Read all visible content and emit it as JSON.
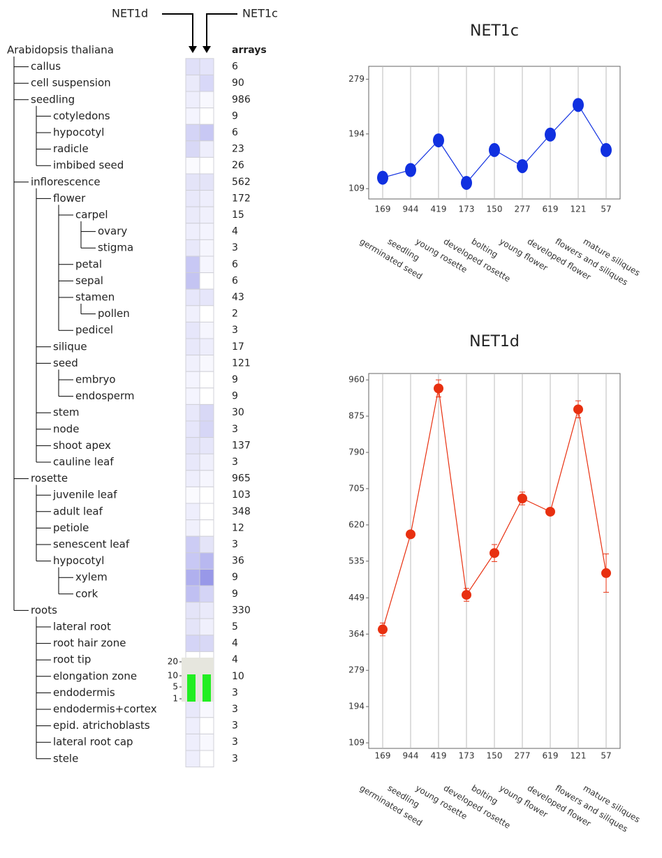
{
  "heatmap": {
    "columns": [
      "NET1d",
      "NET1c"
    ],
    "header": "arrays"
  },
  "tree": {
    "label": "Arabidopsis thaliana",
    "children": [
      {
        "label": "callus",
        "arrays": 6,
        "colors": [
          "#e0e0f8",
          "#e4e4fa"
        ]
      },
      {
        "label": "cell suspension",
        "arrays": 90,
        "colors": [
          "#eaeafa",
          "#d8d8f8"
        ]
      },
      {
        "label": "seedling",
        "arrays": 986,
        "colors": [
          "#eeeefc",
          "#f8f8fe"
        ],
        "children": [
          {
            "label": "cotyledons",
            "arrays": 9,
            "colors": [
              "#f4f4fe",
              "#ffffff"
            ]
          },
          {
            "label": "hypocotyl",
            "arrays": 6,
            "colors": [
              "#d4d4f6",
              "#c8c8f4"
            ]
          },
          {
            "label": "radicle",
            "arrays": 23,
            "colors": [
              "#d8d8f6",
              "#eeeefc"
            ]
          },
          {
            "label": "imbibed seed",
            "arrays": 26,
            "colors": [
              "#fafafe",
              "#ffffff"
            ]
          }
        ]
      },
      {
        "label": "inflorescence",
        "arrays": 562,
        "colors": [
          "#e4e4f8",
          "#e4e4f8"
        ],
        "children": [
          {
            "label": "flower",
            "arrays": 172,
            "colors": [
              "#e8e8fa",
              "#eeeefc"
            ],
            "children": [
              {
                "label": "carpel",
                "arrays": 15,
                "colors": [
                  "#eaeafa",
                  "#f0f0fc"
                ],
                "children": [
                  {
                    "label": "ovary",
                    "arrays": 4,
                    "colors": [
                      "#eeeefc",
                      "#f4f4fe"
                    ]
                  },
                  {
                    "label": "stigma",
                    "arrays": 3,
                    "colors": [
                      "#e8e8fa",
                      "#f6f6fe"
                    ]
                  }
                ]
              },
              {
                "label": "petal",
                "arrays": 6,
                "colors": [
                  "#c8c8f4",
                  "#f6f6fe"
                ]
              },
              {
                "label": "sepal",
                "arrays": 6,
                "colors": [
                  "#c4c4f2",
                  "#ffffff"
                ]
              },
              {
                "label": "stamen",
                "arrays": 43,
                "colors": [
                  "#e6e6fa",
                  "#e6e6fa"
                ],
                "children": [
                  {
                    "label": "pollen",
                    "arrays": 2,
                    "colors": [
                      "#f0f0fc",
                      "#ffffff"
                    ]
                  }
                ]
              },
              {
                "label": "pedicel",
                "arrays": 3,
                "colors": [
                  "#e6e6fa",
                  "#f6f6fe"
                ]
              }
            ]
          },
          {
            "label": "silique",
            "arrays": 17,
            "colors": [
              "#e8e8fa",
              "#eeeefc"
            ]
          },
          {
            "label": "seed",
            "arrays": 121,
            "colors": [
              "#f0f0fc",
              "#f8f8fe"
            ],
            "children": [
              {
                "label": "embryo",
                "arrays": 9,
                "colors": [
                  "#f4f4fe",
                  "#ffffff"
                ]
              },
              {
                "label": "endosperm",
                "arrays": 9,
                "colors": [
                  "#f4f4fe",
                  "#ffffff"
                ]
              }
            ]
          },
          {
            "label": "stem",
            "arrays": 30,
            "colors": [
              "#e8e8fa",
              "#d8d8f6"
            ]
          },
          {
            "label": "node",
            "arrays": 3,
            "colors": [
              "#e6e6fa",
              "#d6d6f6"
            ]
          },
          {
            "label": "shoot apex",
            "arrays": 137,
            "colors": [
              "#e4e4f8",
              "#e6e6fa"
            ]
          },
          {
            "label": "cauline leaf",
            "arrays": 3,
            "colors": [
              "#e8e8fa",
              "#f0f0fc"
            ]
          }
        ]
      },
      {
        "label": "rosette",
        "arrays": 965,
        "colors": [
          "#eeeefc",
          "#f6f6fe"
        ],
        "children": [
          {
            "label": "juvenile leaf",
            "arrays": 103,
            "colors": [
              "#fafafe",
              "#ffffff"
            ]
          },
          {
            "label": "adult leaf",
            "arrays": 348,
            "colors": [
              "#eeeefc",
              "#ffffff"
            ]
          },
          {
            "label": "petiole",
            "arrays": 12,
            "colors": [
              "#f0f0fc",
              "#ffffff"
            ]
          },
          {
            "label": "senescent leaf",
            "arrays": 3,
            "colors": [
              "#ccccf4",
              "#e4e4f8"
            ]
          },
          {
            "label": "hypocotyl",
            "arrays": 36,
            "colors": [
              "#c8c8f4",
              "#b8b8f0"
            ],
            "children": [
              {
                "label": "xylem",
                "arrays": 9,
                "colors": [
                  "#b0b0ee",
                  "#9898e8"
                ]
              },
              {
                "label": "cork",
                "arrays": 9,
                "colors": [
                  "#c0c0f2",
                  "#d4d4f6"
                ]
              }
            ]
          }
        ]
      },
      {
        "label": "roots",
        "arrays": 330,
        "colors": [
          "#e4e4f8",
          "#eaeafa"
        ],
        "children": [
          {
            "label": "lateral root",
            "arrays": 5,
            "colors": [
              "#e4e4f8",
              "#f0f0fc"
            ]
          },
          {
            "label": "root hair zone",
            "arrays": 4,
            "colors": [
              "#d4d4f6",
              "#d8d8f6"
            ]
          },
          {
            "label": "root tip",
            "arrays": 4,
            "colors": [
              "#ffffff",
              "#ffffff"
            ]
          },
          {
            "label": "elongation zone",
            "arrays": 10,
            "colors": [
              "#eeeefc",
              "#eaeafa"
            ]
          },
          {
            "label": "endodermis",
            "arrays": 3,
            "colors": [
              "#d0d0f6",
              "#f8f8fe"
            ]
          },
          {
            "label": "endodermis+cortex",
            "arrays": 3,
            "colors": [
              "#e8e8fa",
              "#f8f8fe"
            ]
          },
          {
            "label": "epid. atrichoblasts",
            "arrays": 3,
            "colors": [
              "#eeeefc",
              "#ffffff"
            ]
          },
          {
            "label": "lateral root cap",
            "arrays": 3,
            "colors": [
              "#eeeefc",
              "#f8f8fe"
            ]
          },
          {
            "label": "stele",
            "arrays": 3,
            "colors": [
              "#eeeefc",
              "#ffffff"
            ]
          }
        ]
      }
    ]
  },
  "chart_data": [
    {
      "type": "line",
      "title": "NET1c",
      "color": "#1030e0",
      "grid": true,
      "categories": [
        "germinated seed",
        "seedling",
        "young rosette",
        "developed rosette",
        "bolting",
        "young flower",
        "developed flower",
        "flowers and siliques",
        "mature siliques"
      ],
      "x_counts": [
        169,
        944,
        419,
        173,
        150,
        277,
        619,
        121,
        57
      ],
      "values": [
        126,
        138,
        184,
        118,
        169,
        144,
        193,
        239,
        169
      ],
      "ylim": [
        93,
        299
      ],
      "yticks": [
        109,
        194,
        279
      ]
    },
    {
      "type": "line",
      "title": "NET1d",
      "color": "#e83010",
      "grid": true,
      "categories": [
        "germinated seed",
        "seedling",
        "young rosette",
        "developed rosette",
        "bolting",
        "young flower",
        "developed flower",
        "flowers and siliques",
        "mature siliques"
      ],
      "x_counts": [
        169,
        944,
        419,
        173,
        150,
        277,
        619,
        121,
        57
      ],
      "values": [
        375,
        598,
        940,
        456,
        554,
        682,
        651,
        891,
        507
      ],
      "errors": [
        15,
        6,
        20,
        15,
        20,
        15,
        6,
        20,
        45
      ],
      "ylim": [
        96,
        975
      ],
      "yticks": [
        109,
        194,
        279,
        364,
        449,
        535,
        620,
        705,
        790,
        875,
        960
      ]
    },
    {
      "type": "bar",
      "color": "#22ee22",
      "values": [
        11,
        11
      ],
      "yticks": [
        20,
        10,
        5,
        1
      ]
    }
  ]
}
